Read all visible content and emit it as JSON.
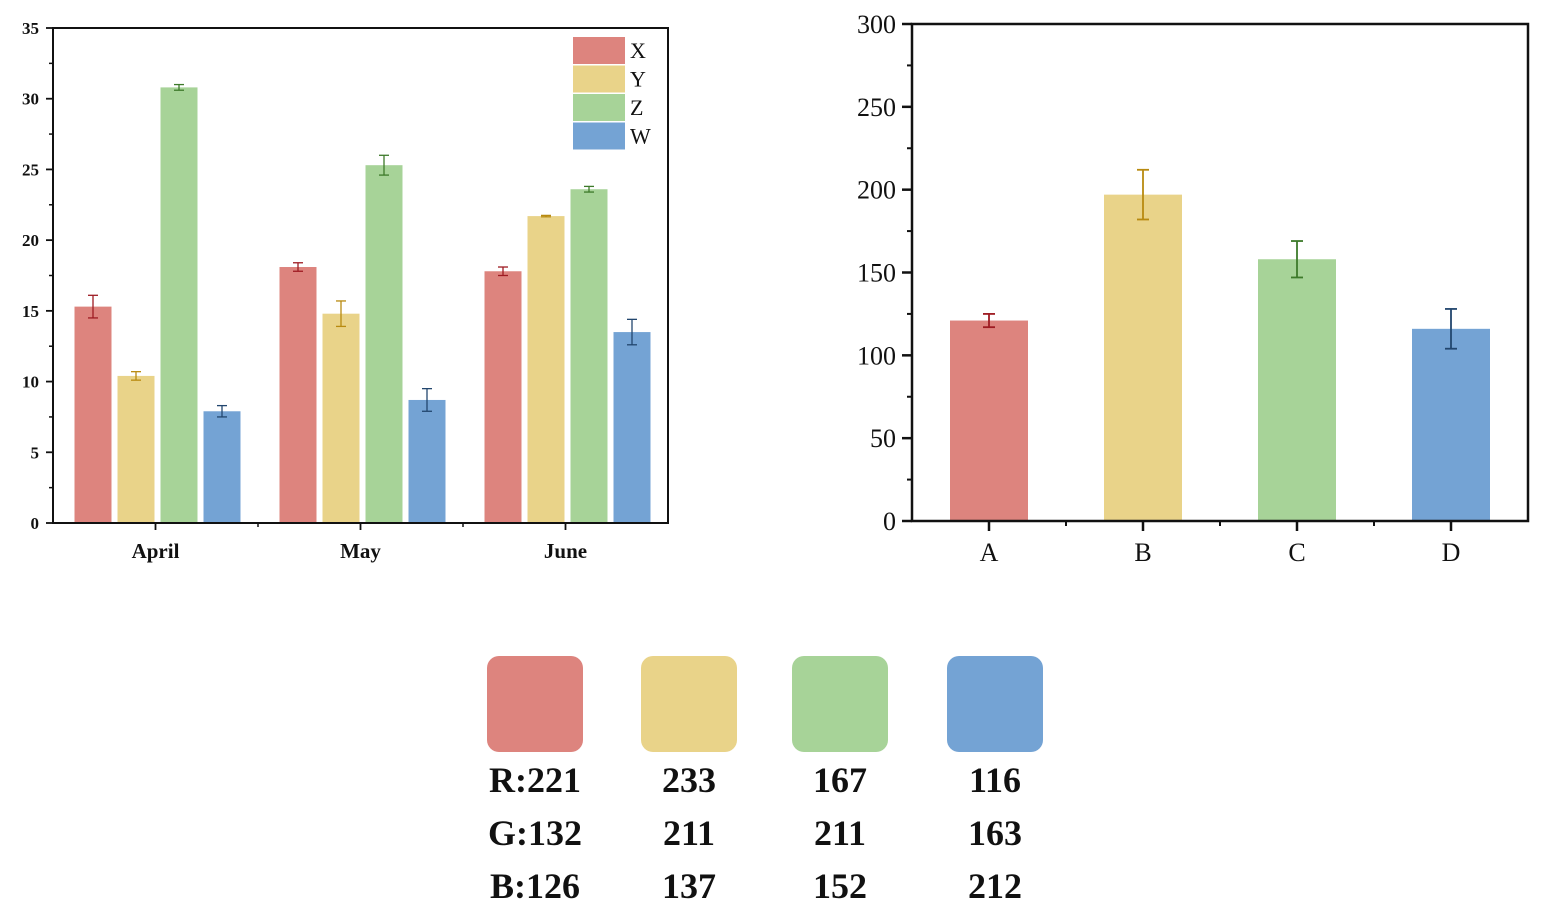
{
  "chart_data": [
    {
      "type": "bar",
      "title": "",
      "xlabel": "",
      "ylabel": "",
      "categories": [
        "April",
        "May",
        "June"
      ],
      "ylim": [
        0,
        35
      ],
      "yticks": [
        "0",
        "5",
        "10",
        "15",
        "20",
        "25",
        "30",
        "35"
      ],
      "legend_position": "top-right",
      "series": [
        {
          "name": "X",
          "color": "#dd847e",
          "errcolor": "#9e1b22",
          "values": [
            15.3,
            18.1,
            17.8
          ],
          "errors": [
            0.8,
            0.3,
            0.3
          ]
        },
        {
          "name": "Y",
          "color": "#e9d389",
          "errcolor": "#b88a10",
          "values": [
            10.4,
            14.8,
            21.7
          ],
          "errors": [
            0.3,
            0.9,
            0.05
          ]
        },
        {
          "name": "Z",
          "color": "#a7d398",
          "errcolor": "#3d7a2a",
          "values": [
            30.8,
            25.3,
            23.6
          ],
          "errors": [
            0.2,
            0.7,
            0.2
          ]
        },
        {
          "name": "W",
          "color": "#74a3d4",
          "errcolor": "#22466e",
          "values": [
            7.9,
            8.7,
            13.5
          ],
          "errors": [
            0.4,
            0.8,
            0.9
          ]
        }
      ]
    },
    {
      "type": "bar",
      "title": "",
      "xlabel": "",
      "ylabel": "",
      "categories": [
        "A",
        "B",
        "C",
        "D"
      ],
      "ylim": [
        0,
        300
      ],
      "yticks": [
        "0",
        "50",
        "100",
        "150",
        "200",
        "250",
        "300"
      ],
      "values": [
        121,
        197,
        158,
        116
      ],
      "errors": [
        4,
        15,
        11,
        12
      ],
      "colors": [
        "#dd847e",
        "#e9d389",
        "#a7d398",
        "#74a3d4"
      ],
      "errcolors": [
        "#9e1b22",
        "#b88a10",
        "#3d7a2a",
        "#22466e"
      ]
    }
  ],
  "palette": [
    {
      "hex": "#dd847e",
      "r": "R:221",
      "g": "G:132",
      "b": "B:126"
    },
    {
      "hex": "#e9d389",
      "r": "233",
      "g": "211",
      "b": "137"
    },
    {
      "hex": "#a7d398",
      "r": "167",
      "g": "211",
      "b": "152"
    },
    {
      "hex": "#74a3d4",
      "r": "116",
      "g": "163",
      "b": "212"
    }
  ]
}
